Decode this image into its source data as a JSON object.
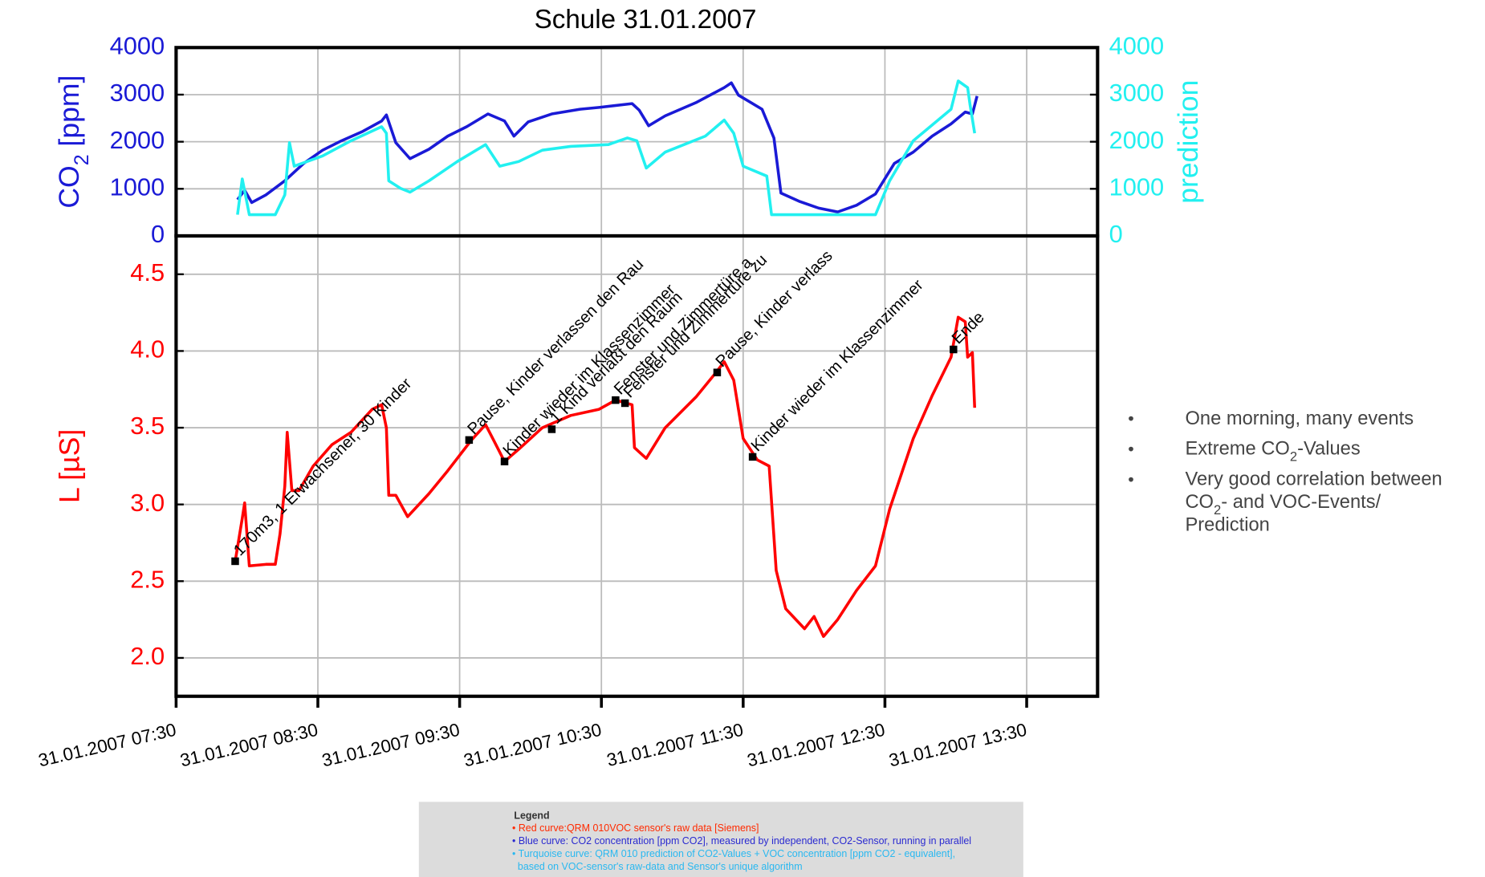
{
  "chart_data": [
    {
      "type": "line",
      "title": "Schule 31.01.2007",
      "ylabel": [
        "CO",
        {
          "sub": "2"
        },
        " [ppm]"
      ],
      "y2label": "prediction",
      "xlim": [
        "31.01.2007 07:30",
        "31.01.2007 14:00"
      ],
      "xticks": [
        "31.01.2007 07:30",
        "31.01.2007 08:30",
        "31.01.2007 09:30",
        "31.01.2007 10:30",
        "31.01.2007 11:30",
        "31.01.2007 12:30",
        "31.01.2007 13:30"
      ],
      "ylim": [
        0,
        4000
      ],
      "yticks": [
        0,
        1000,
        2000,
        3000,
        4000
      ],
      "y2lim": [
        0,
        4000
      ],
      "y2ticks": [
        0,
        1000,
        2000,
        3000,
        4000
      ],
      "grid": true,
      "series": [
        {
          "name": "CO2",
          "color": "#1a1ad6",
          "x": [
            "31.01.2007 07:56",
            "31.01.2007 07:59",
            "31.01.2007 08:02",
            "31.01.2007 08:08",
            "31.01.2007 08:16",
            "31.01.2007 08:24",
            "31.01.2007 08:32",
            "31.01.2007 08:40",
            "31.01.2007 08:49",
            "31.01.2007 08:57",
            "31.01.2007 08:59",
            "31.01.2007 09:03",
            "31.01.2007 09:09",
            "31.01.2007 09:17",
            "31.01.2007 09:25",
            "31.01.2007 09:33",
            "31.01.2007 09:42",
            "31.01.2007 09:49",
            "31.01.2007 09:53",
            "31.01.2007 09:59",
            "31.01.2007 10:09",
            "31.01.2007 10:21",
            "31.01.2007 10:29",
            "31.01.2007 10:43",
            "31.01.2007 10:46",
            "31.01.2007 10:50",
            "31.01.2007 10:57",
            "31.01.2007 11:10",
            "31.01.2007 11:22",
            "31.01.2007 11:25",
            "31.01.2007 11:28",
            "31.01.2007 11:38",
            "31.01.2007 11:43",
            "31.01.2007 11:46",
            "31.01.2007 11:54",
            "31.01.2007 12:02",
            "31.01.2007 12:10",
            "31.01.2007 12:18",
            "31.01.2007 12:26",
            "31.01.2007 12:34",
            "31.01.2007 12:42",
            "31.01.2007 12:50",
            "31.01.2007 12:58",
            "31.01.2007 13:04",
            "31.01.2007 13:07",
            "31.01.2007 13:09"
          ],
          "values": [
            770,
            970,
            710,
            870,
            1170,
            1540,
            1820,
            2020,
            2220,
            2440,
            2570,
            1980,
            1640,
            1840,
            2120,
            2320,
            2590,
            2440,
            2120,
            2420,
            2590,
            2690,
            2730,
            2810,
            2670,
            2340,
            2550,
            2830,
            3150,
            3250,
            2990,
            2690,
            2080,
            910,
            730,
            590,
            510,
            650,
            890,
            1540,
            1780,
            2120,
            2380,
            2630,
            2590,
            2970
          ]
        },
        {
          "name": "prediction",
          "color": "#22f0f0",
          "axis": "y2",
          "x": [
            "31.01.2007 07:56",
            "31.01.2007 07:58",
            "31.01.2007 08:01",
            "31.01.2007 08:12",
            "31.01.2007 08:16",
            "31.01.2007 08:18",
            "31.01.2007 08:20",
            "31.01.2007 08:32",
            "31.01.2007 08:44",
            "31.01.2007 08:57",
            "31.01.2007 08:59",
            "31.01.2007 09:00",
            "31.01.2007 09:05",
            "31.01.2007 09:09",
            "31.01.2007 09:17",
            "31.01.2007 09:29",
            "31.01.2007 09:41",
            "31.01.2007 09:47",
            "31.01.2007 09:55",
            "31.01.2007 10:05",
            "31.01.2007 10:17",
            "31.01.2007 10:33",
            "31.01.2007 10:41",
            "31.01.2007 10:45",
            "31.01.2007 10:49",
            "31.01.2007 10:57",
            "31.01.2007 11:14",
            "31.01.2007 11:22",
            "31.01.2007 11:26",
            "31.01.2007 11:30",
            "31.01.2007 11:40",
            "31.01.2007 11:42",
            "31.01.2007 12:18",
            "31.01.2007 12:26",
            "31.01.2007 12:32",
            "31.01.2007 12:42",
            "31.01.2007 12:58",
            "31.01.2007 13:01",
            "31.01.2007 13:05",
            "31.01.2007 13:06",
            "31.01.2007 13:08"
          ],
          "values": [
            450,
            1210,
            450,
            450,
            870,
            1980,
            1480,
            1700,
            2020,
            2320,
            2180,
            1170,
            1010,
            930,
            1170,
            1580,
            1940,
            1480,
            1580,
            1820,
            1900,
            1940,
            2080,
            2020,
            1440,
            1780,
            2120,
            2460,
            2180,
            1480,
            1270,
            450,
            450,
            450,
            1170,
            2020,
            2690,
            3290,
            3150,
            2790,
            2180
          ]
        }
      ]
    },
    {
      "type": "line",
      "ylabel": "L [µS]",
      "xlim": [
        "31.01.2007 07:30",
        "31.01.2007 14:00"
      ],
      "xticks": [
        "31.01.2007 07:30",
        "31.01.2007 08:30",
        "31.01.2007 09:30",
        "31.01.2007 10:30",
        "31.01.2007 11:30",
        "31.01.2007 12:30",
        "31.01.2007 13:30"
      ],
      "ylim": [
        1.75,
        4.75
      ],
      "yticks": [
        {
          "value": 2,
          "label": "2.0"
        },
        2.5,
        {
          "value": 3,
          "label": "3.0"
        },
        3.5,
        {
          "value": 4,
          "label": "4.0"
        },
        4.5
      ],
      "grid": true,
      "series": [
        {
          "name": "L",
          "color": "#ff0000",
          "x": [
            "31.01.2007 07:55",
            "31.01.2007 07:58",
            "31.01.2007 07:59",
            "31.01.2007 08:01",
            "31.01.2007 08:08",
            "31.01.2007 08:12",
            "31.01.2007 08:14",
            "31.01.2007 08:16",
            "31.01.2007 08:17",
            "31.01.2007 08:19",
            "31.01.2007 08:22",
            "31.01.2007 08:28",
            "31.01.2007 08:36",
            "31.01.2007 08:44",
            "31.01.2007 08:53",
            "31.01.2007 08:57",
            "31.01.2007 08:59",
            "31.01.2007 09:00",
            "31.01.2007 09:03",
            "31.01.2007 09:08",
            "31.01.2007 09:17",
            "31.01.2007 09:25",
            "31.01.2007 09:35",
            "31.01.2007 09:41",
            "31.01.2007 09:45",
            "31.01.2007 09:49",
            "31.01.2007 09:55",
            "31.01.2007 10:05",
            "31.01.2007 10:17",
            "31.01.2007 10:29",
            "31.01.2007 10:36",
            "31.01.2007 10:43",
            "31.01.2007 10:44",
            "31.01.2007 10:49",
            "31.01.2007 10:57",
            "31.01.2007 11:10",
            "31.01.2007 11:18",
            "31.01.2007 11:22",
            "31.01.2007 11:26",
            "31.01.2007 11:30",
            "31.01.2007 11:36",
            "31.01.2007 11:41",
            "31.01.2007 11:44",
            "31.01.2007 11:48",
            "31.01.2007 11:56",
            "31.01.2007 12:00",
            "31.01.2007 12:04",
            "31.01.2007 12:10",
            "31.01.2007 12:18",
            "31.01.2007 12:26",
            "31.01.2007 12:32",
            "31.01.2007 12:42",
            "31.01.2007 12:50",
            "31.01.2007 12:58",
            "31.01.2007 13:01",
            "31.01.2007 13:04",
            "31.01.2007 13:05",
            "31.01.2007 13:07",
            "31.01.2007 13:08"
          ],
          "values": [
            2.63,
            2.91,
            3.01,
            2.6,
            2.61,
            2.61,
            2.81,
            3.12,
            3.47,
            3.09,
            3.09,
            3.25,
            3.39,
            3.47,
            3.62,
            3.65,
            3.5,
            3.06,
            3.06,
            2.92,
            3.07,
            3.22,
            3.42,
            3.52,
            3.4,
            3.28,
            3.36,
            3.5,
            3.58,
            3.62,
            3.68,
            3.65,
            3.37,
            3.3,
            3.5,
            3.7,
            3.85,
            3.93,
            3.81,
            3.43,
            3.29,
            3.25,
            2.57,
            2.32,
            2.19,
            2.27,
            2.14,
            2.25,
            2.44,
            2.6,
            2.97,
            3.43,
            3.71,
            3.96,
            4.22,
            4.19,
            3.96,
            3.99,
            3.63
          ]
        }
      ],
      "annotations": [
        {
          "x": "31.01.2007 07:55",
          "y": 2.63,
          "text": "170m3, 1 Erwachsener, 30 Kinder"
        },
        {
          "x": "31.01.2007 09:34",
          "y": 3.42,
          "text": "Pause, Kinder verlassen den Rau"
        },
        {
          "x": "31.01.2007 09:49",
          "y": 3.28,
          "text": "Kinder wieder im Klassenzimmer"
        },
        {
          "x": "31.01.2007 10:09",
          "y": 3.49,
          "text": "1 Kind verläßt den Raum"
        },
        {
          "x": "31.01.2007 10:36",
          "y": 3.68,
          "text": "Fenster und Zimmertüre a"
        },
        {
          "x": "31.01.2007 10:40",
          "y": 3.66,
          "text": "Fenster und Zimmertüre zu"
        },
        {
          "x": "31.01.2007 11:19",
          "y": 3.86,
          "text": "Pause, Kinder verlass"
        },
        {
          "x": "31.01.2007 11:34",
          "y": 3.31,
          "text": "Kinder wieder im Klassenzimmer"
        },
        {
          "x": "31.01.2007 12:59",
          "y": 4.01,
          "text": "Ende"
        }
      ]
    }
  ],
  "notes": [
    [
      [
        "One morning, many events"
      ]
    ],
    [
      [
        "Extreme CO",
        {
          "sub": "2"
        },
        "-Values"
      ]
    ],
    [
      [
        "Very good correlation between"
      ],
      [
        "CO",
        {
          "sub": "2"
        },
        "- and VOC-Events/"
      ],
      [
        "Prediction"
      ]
    ]
  ],
  "legend_box": {
    "title": "Legend",
    "lines": [
      {
        "text": "• Red curve:QRM 010VOC sensor's raw data [Siemens]",
        "color": "#ff2a00"
      },
      {
        "text": "• Blue curve: CO2 concentration [ppm CO2], measured by independent, CO2-Sensor, running in parallel",
        "color": "#2a2ad0"
      },
      {
        "text": "• Turquoise curve: QRM 010 prediction of CO2-Values + VOC concentration [ppm CO2 - equivalent],",
        "color": "#2ab8f0"
      },
      {
        "text": "  based on VOC-sensor's raw-data and Sensor's unique algorithm",
        "color": "#2ab8f0"
      }
    ]
  }
}
